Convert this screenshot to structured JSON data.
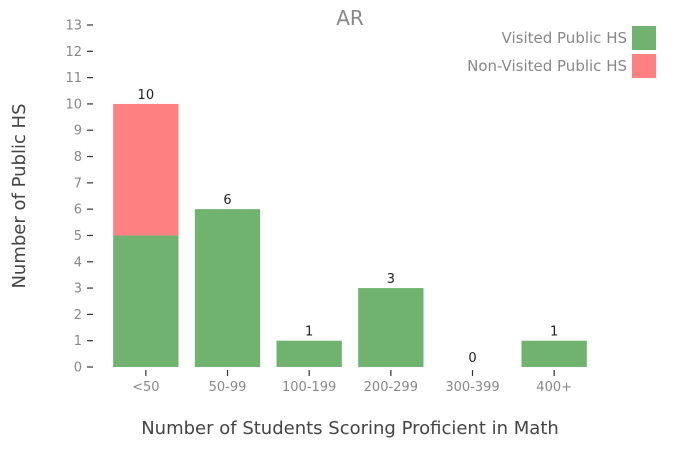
{
  "chart_data": {
    "type": "bar",
    "stacked": true,
    "title": "AR",
    "xlabel": "Number of Students Scoring Proficient in Math",
    "ylabel": "Number of Public HS",
    "categories": [
      "<50",
      "50-99",
      "100-199",
      "200-299",
      "300-399",
      "400+"
    ],
    "series": [
      {
        "name": "Visited Public HS",
        "color": "#6fb36f",
        "values": [
          5,
          6,
          1,
          3,
          0,
          1
        ]
      },
      {
        "name": "Non-Visited Public HS",
        "color": "#ff8080",
        "values": [
          5,
          0,
          0,
          0,
          0,
          0
        ]
      }
    ],
    "totals": [
      "10",
      "6",
      "1",
      "3",
      "0",
      "1"
    ],
    "ylim": [
      0,
      13
    ],
    "yticks": [
      "0",
      "1",
      "2",
      "3",
      "4",
      "5",
      "6",
      "7",
      "8",
      "9",
      "10",
      "11",
      "12",
      "13"
    ],
    "grid": false,
    "legend_position": "top-right"
  }
}
